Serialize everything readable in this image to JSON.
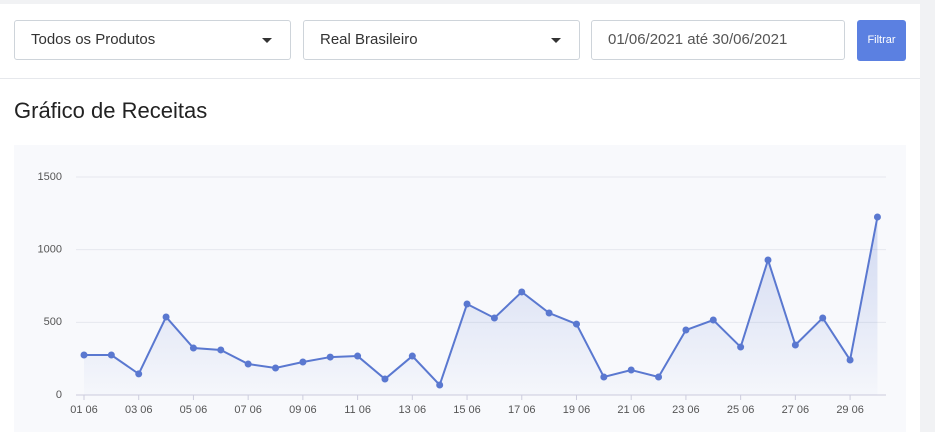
{
  "filters": {
    "product": "Todos os Produtos",
    "currency": "Real Brasileiro",
    "date_range": "01/06/2021 até 30/06/2021",
    "button": "Filtrar"
  },
  "chart_data": {
    "type": "line",
    "title": "Gráfico de Receitas",
    "categories": [
      "01 06",
      null,
      "03 06",
      null,
      "05 06",
      null,
      "07 06",
      null,
      "09 06",
      null,
      "11 06",
      null,
      "13 06",
      null,
      "15 06",
      null,
      "17 06",
      null,
      "19 06",
      null,
      "21 06",
      null,
      "23 06",
      null,
      "25 06",
      null,
      "27 06",
      null,
      "29 06",
      null
    ],
    "values": [
      275,
      275,
      145,
      537,
      323,
      310,
      213,
      186,
      227,
      261,
      268,
      110,
      268,
      69,
      626,
      530,
      709,
      564,
      488,
      124,
      172,
      124,
      447,
      516,
      330,
      929,
      344,
      530,
      241,
      1225
    ],
    "color": "#5a78d0",
    "ylim": [
      0,
      1500
    ],
    "yticks": [
      0,
      500,
      1000,
      1500
    ],
    "grid": true
  }
}
